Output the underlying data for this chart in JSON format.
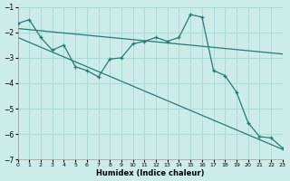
{
  "xlabel": "Humidex (Indice chaleur)",
  "background_color": "#ccecea",
  "grid_color": "#aad8d4",
  "line_color": "#2a7a72",
  "xlim": [
    0,
    23
  ],
  "ylim": [
    -7,
    -1
  ],
  "xticks": [
    0,
    1,
    2,
    3,
    4,
    5,
    6,
    7,
    8,
    9,
    10,
    11,
    12,
    13,
    14,
    15,
    16,
    17,
    18,
    19,
    20,
    21,
    22,
    23
  ],
  "yticks": [
    -7,
    -6,
    -5,
    -4,
    -3,
    -2,
    -1
  ],
  "zigzag_x": [
    0,
    1,
    2,
    3,
    4,
    5,
    6,
    7,
    8,
    9,
    10,
    11,
    12,
    13,
    14,
    15,
    16,
    17,
    18,
    19,
    20,
    21,
    22,
    23
  ],
  "zigzag_y": [
    -1.65,
    -1.5,
    -2.2,
    -2.7,
    -2.5,
    -3.35,
    -3.5,
    -3.75,
    -3.05,
    -3.0,
    -2.45,
    -2.35,
    -2.2,
    -2.35,
    -2.2,
    -1.3,
    -1.4,
    -3.5,
    -3.7,
    -4.35,
    -5.55,
    -6.1,
    -6.15,
    -6.55
  ],
  "upper_line_x": [
    0,
    23
  ],
  "upper_line_y": [
    -1.85,
    -2.85
  ],
  "lower_line_x": [
    0,
    23
  ],
  "lower_line_y": [
    -2.2,
    -6.6
  ]
}
